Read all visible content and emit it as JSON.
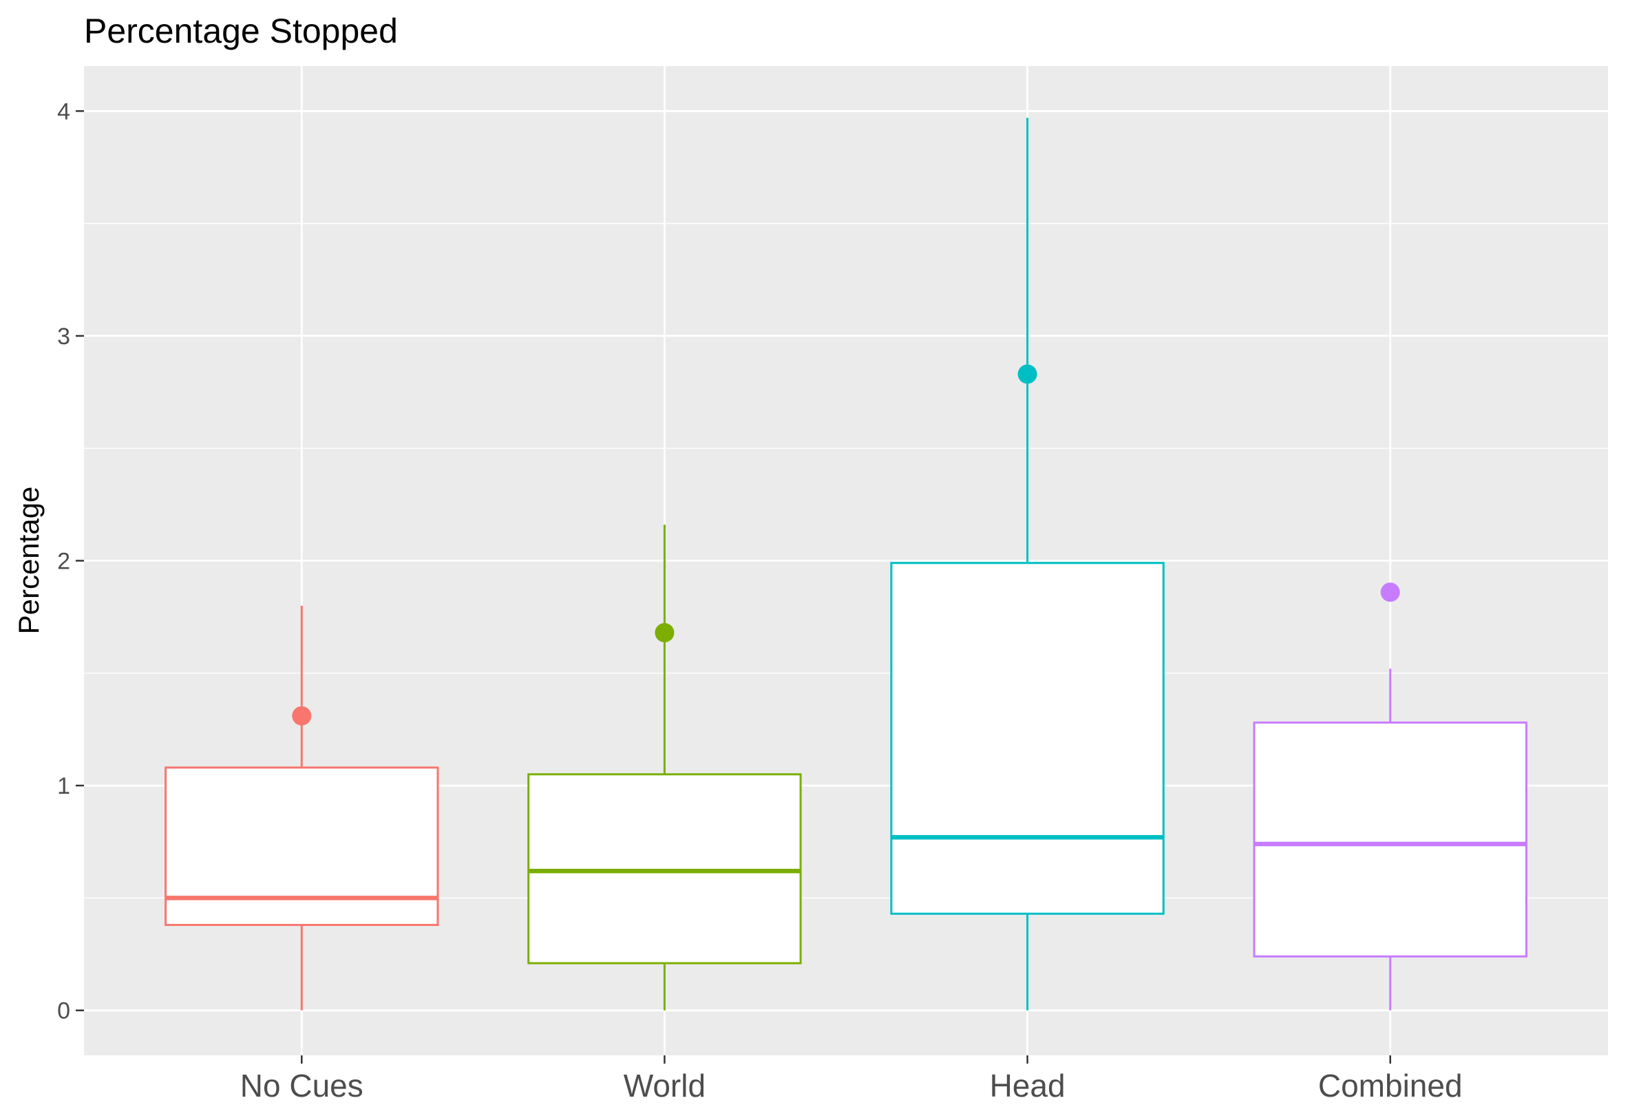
{
  "chart_data": {
    "type": "box",
    "title": "Percentage Stopped",
    "xlabel": "",
    "ylabel": "Percentage",
    "ylim": [
      -0.2,
      4.2
    ],
    "yticks": [
      0,
      1,
      2,
      3,
      4
    ],
    "grid": true,
    "legend": "none",
    "categories": [
      "No Cues",
      "World",
      "Head",
      "Combined"
    ],
    "colors": [
      "#F8766D",
      "#7CAE00",
      "#00BFC4",
      "#C77CFF"
    ],
    "boxes": [
      {
        "category": "No Cues",
        "whisker_low": 0.0,
        "q1": 0.38,
        "median": 0.5,
        "q3": 1.08,
        "whisker_high": 1.8,
        "outliers": [
          1.31
        ]
      },
      {
        "category": "World",
        "whisker_low": 0.0,
        "q1": 0.21,
        "median": 0.62,
        "q3": 1.05,
        "whisker_high": 2.16,
        "outliers": [
          1.68
        ]
      },
      {
        "category": "Head",
        "whisker_low": 0.0,
        "q1": 0.43,
        "median": 0.77,
        "q3": 1.99,
        "whisker_high": 3.97,
        "outliers": [
          2.83
        ]
      },
      {
        "category": "Combined",
        "whisker_low": 0.0,
        "q1": 0.24,
        "median": 0.74,
        "q3": 1.28,
        "whisker_high": 1.52,
        "outliers": [
          1.86
        ]
      }
    ]
  }
}
